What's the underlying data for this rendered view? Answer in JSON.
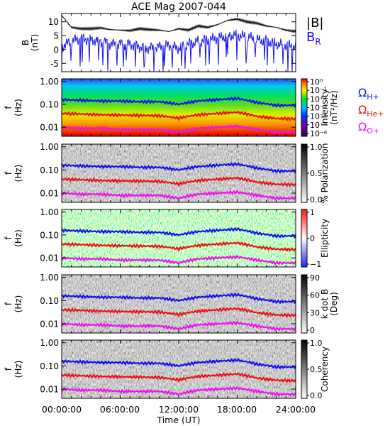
{
  "title": "ACE Mag 2007-044",
  "xlabel": "Time (UT)",
  "x_ticks": [
    "00:00:00",
    "06:00:00",
    "12:00:00",
    "18:00:00",
    "24:00:00"
  ],
  "freq_ticks": [
    "1.00",
    "0.10",
    "0.01"
  ],
  "freq_axis_label": [
    "f",
    "(Hz)"
  ],
  "colors": {
    "H": "#1111ee",
    "He": "#ee1111",
    "O": "#ee11ee",
    "B": "#000000",
    "BR": "#1111ee"
  },
  "chart_data": [
    {
      "type": "line",
      "ylabel": [
        "B",
        "(nT)"
      ],
      "ylim": [
        -8,
        13
      ],
      "y_ticks": [
        10,
        5,
        0,
        -5
      ],
      "x": [
        0,
        1,
        2,
        3,
        4,
        5,
        6,
        7,
        8,
        9,
        10,
        11,
        12,
        13,
        14,
        15,
        16,
        17,
        18,
        19,
        20,
        21,
        22,
        23,
        24
      ],
      "series": [
        {
          "name": "|B|",
          "values": [
            12.3,
            8,
            7.5,
            7.5,
            7.8,
            7.2,
            7,
            6.8,
            7.5,
            7.2,
            7,
            6.5,
            7.5,
            7,
            8.5,
            8,
            9,
            10.5,
            11,
            10,
            9.5,
            8.5,
            8,
            7,
            6.5
          ]
        },
        {
          "name": "B",
          "subscript": "R",
          "values": [
            1,
            3,
            4,
            3.5,
            3.2,
            2,
            2,
            2,
            1,
            0.5,
            1,
            1.5,
            0.5,
            2,
            3,
            3.5,
            4,
            5,
            5,
            4.5,
            3.5,
            3,
            2,
            1.5,
            1
          ]
        }
      ],
      "legend": "right"
    },
    {
      "type": "heatmap",
      "quantity": "Intensity",
      "colorbar_label": [
        "Intensity",
        "(nT²/Hz)"
      ],
      "colorbar_ticks": [
        "10⁰",
        "10⁻¹",
        "10⁻²",
        "10⁻³",
        "10⁻⁴",
        "10⁻⁵",
        "10⁻⁶"
      ],
      "x": [
        0,
        24
      ],
      "y_log": true,
      "ylim": [
        0.004,
        1.3
      ]
    },
    {
      "type": "heatmap",
      "quantity": "% Polarization",
      "colorbar_label": [
        "% Polarization"
      ],
      "colorbar_ticks": [
        "1.0",
        "0.5",
        "0.0"
      ]
    },
    {
      "type": "heatmap",
      "quantity": "Ellipticity",
      "colorbar_label": [
        "Ellipticity"
      ],
      "colorbar_ticks": [
        "1",
        "0",
        "−1"
      ]
    },
    {
      "type": "heatmap",
      "quantity": "k dot B",
      "colorbar_label": [
        "k dot B",
        "(Deg)"
      ],
      "colorbar_ticks": [
        "90",
        "60",
        "30",
        "0"
      ]
    },
    {
      "type": "heatmap",
      "quantity": "Coherency",
      "colorbar_label": [
        "Coherency"
      ],
      "colorbar_ticks": [
        "1.0",
        "0.5",
        "0.0"
      ]
    }
  ],
  "gyro_lines": {
    "x": [
      0,
      2,
      4,
      6,
      8,
      10,
      12,
      14,
      16,
      18,
      20,
      22,
      24
    ],
    "H": [
      0.16,
      0.15,
      0.14,
      0.14,
      0.13,
      0.13,
      0.1,
      0.14,
      0.16,
      0.18,
      0.12,
      0.09,
      0.09
    ],
    "He": [
      0.04,
      0.038,
      0.035,
      0.034,
      0.033,
      0.032,
      0.025,
      0.035,
      0.04,
      0.045,
      0.03,
      0.024,
      0.023
    ],
    "O": [
      0.01,
      0.009,
      0.009,
      0.008,
      0.008,
      0.008,
      0.006,
      0.009,
      0.01,
      0.011,
      0.008,
      0.006,
      0.006
    ]
  },
  "legend_labels": [
    {
      "base": "Ω",
      "sub": "H+",
      "color": "#1111ee"
    },
    {
      "base": "Ω",
      "sub": "He+",
      "color": "#ee1111"
    },
    {
      "base": "Ω",
      "sub": "O+",
      "color": "#ee11ee"
    }
  ]
}
